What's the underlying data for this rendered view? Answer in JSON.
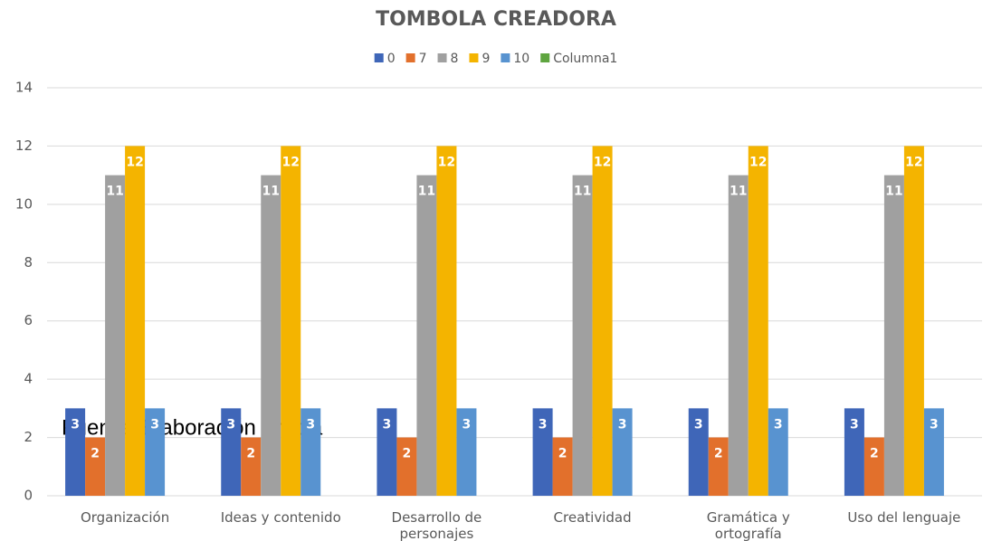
{
  "chart_data": {
    "type": "bar",
    "title": "TOMBOLA CREADORA",
    "annotation": "Fuente: Elaboración propia",
    "categories": [
      "Organización",
      "Ideas y contenido",
      "Desarrollo de personajes",
      "Creatividad",
      "Gramática y ortografía",
      "Uso del lenguaje"
    ],
    "series": [
      {
        "name": "0",
        "color": "#3f66b8",
        "values": [
          3,
          3,
          3,
          3,
          3,
          3
        ]
      },
      {
        "name": "7",
        "color": "#e2702c",
        "values": [
          2,
          2,
          2,
          2,
          2,
          2
        ]
      },
      {
        "name": "8",
        "color": "#a0a0a0",
        "values": [
          11,
          11,
          11,
          11,
          11,
          11
        ]
      },
      {
        "name": "9",
        "color": "#f4b400",
        "values": [
          12,
          12,
          12,
          12,
          12,
          12
        ]
      },
      {
        "name": "10",
        "color": "#5893d0",
        "values": [
          3,
          3,
          3,
          3,
          3,
          3
        ]
      },
      {
        "name": "Columna1",
        "color": "#5fa540",
        "values": [
          null,
          null,
          null,
          null,
          null,
          null
        ]
      }
    ],
    "ylim": [
      0,
      14
    ],
    "yticks": [
      0,
      2,
      4,
      6,
      8,
      10,
      12,
      14
    ],
    "grid": true,
    "legend": "top",
    "data_labels": true
  }
}
